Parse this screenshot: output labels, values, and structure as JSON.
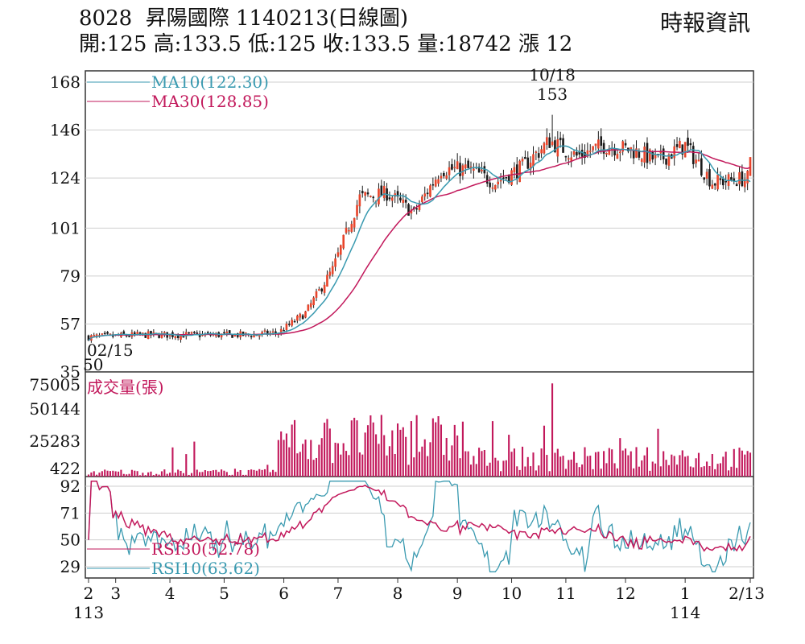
{
  "header": {
    "code": "8028",
    "name": "昇陽國際",
    "date_label": "1140213(日線圖)",
    "source": "時報資訊",
    "ohlc": [
      {
        "label": "開:",
        "value": "125"
      },
      {
        "label": "高:",
        "value": "133.5"
      },
      {
        "label": "低:",
        "value": "125"
      },
      {
        "label": "收:",
        "value": "133.5"
      },
      {
        "label": "量:",
        "value": "18742"
      },
      {
        "label": "漲 ",
        "value": "12"
      }
    ]
  },
  "colors": {
    "up": "#e8442a",
    "down": "#1a1a1a",
    "ma10": "#3a9ab0",
    "ma30": "#c2185b",
    "volume": "#c2185b",
    "rsi30": "#c2185b",
    "rsi10": "#3a9ab0",
    "grid": "#cfcfcf",
    "frame": "#333333"
  },
  "chart_data": [
    {
      "type": "candlestick",
      "panel": "price",
      "y_ticks": [
        "168",
        "146",
        "124",
        "101",
        "79",
        "57",
        "35"
      ],
      "ylim": [
        35,
        168
      ],
      "legend": [
        {
          "name": "MA10(122.30)",
          "series": "ma10"
        },
        {
          "name": "MA30(128.85)",
          "series": "ma30"
        }
      ],
      "annotations": [
        {
          "label": "10/18",
          "value": "153",
          "x": "10/18",
          "y": 153
        },
        {
          "label": "02/15",
          "value": "50",
          "x": "02/15",
          "y": 50
        }
      ],
      "last_bar": {
        "open": 125,
        "high": 133.5,
        "low": 125,
        "close": 133.5
      },
      "ma10_last": 122.3,
      "ma30_last": 128.85,
      "trend_points": [
        {
          "month": 2,
          "price": 51
        },
        {
          "month": 3,
          "price": 52
        },
        {
          "month": 4,
          "price": 52
        },
        {
          "month": 5,
          "price": 52
        },
        {
          "month": 5.5,
          "price": 53
        },
        {
          "month": 6,
          "price": 62
        },
        {
          "month": 6.5,
          "price": 82
        },
        {
          "month": 7,
          "price": 115
        },
        {
          "month": 7.5,
          "price": 117
        },
        {
          "month": 8,
          "price": 108
        },
        {
          "month": 8.5,
          "price": 128
        },
        {
          "month": 9,
          "price": 128
        },
        {
          "month": 9.5,
          "price": 122
        },
        {
          "month": 10,
          "price": 129
        },
        {
          "month": 10.5,
          "price": 141
        },
        {
          "month": 11,
          "price": 134
        },
        {
          "month": 11.5,
          "price": 139
        },
        {
          "month": 12,
          "price": 137
        },
        {
          "month": 12.5,
          "price": 132
        },
        {
          "month": 13,
          "price": 139
        },
        {
          "month": 13.5,
          "price": 122
        },
        {
          "month": 14.2,
          "price": 124
        }
      ]
    },
    {
      "type": "bar",
      "panel": "volume",
      "title": "成交量(張)",
      "y_ticks": [
        "75005",
        "50144",
        "25283",
        "422"
      ],
      "ylim": [
        422,
        75005
      ],
      "last_value": 18742,
      "peak": {
        "month": 10.55,
        "value": 75005
      }
    },
    {
      "type": "line",
      "panel": "rsi",
      "y_ticks": [
        "92",
        "71",
        "50",
        "29"
      ],
      "ylim": [
        29,
        92
      ],
      "legend": [
        {
          "name": "RSI30(52.78)",
          "series": "rsi30"
        },
        {
          "name": "RSI10(63.62)",
          "series": "rsi10"
        }
      ],
      "rsi10_last": 63.62,
      "rsi30_last": 52.78
    }
  ],
  "x_axis": {
    "ticks": [
      {
        "label": "2",
        "month": 2
      },
      {
        "label": "3",
        "month": 2.5
      },
      {
        "label": "4",
        "month": 3.5
      },
      {
        "label": "5",
        "month": 4.5
      },
      {
        "label": "6",
        "month": 5.6
      },
      {
        "label": "7",
        "month": 6.6
      },
      {
        "label": "8",
        "month": 7.7
      },
      {
        "label": "9",
        "month": 8.8
      },
      {
        "label": "10",
        "month": 9.8
      },
      {
        "label": "11",
        "month": 10.8
      },
      {
        "label": "12",
        "month": 11.9
      },
      {
        "label": "1",
        "month": 13.0
      },
      {
        "label": "2/13",
        "month": 14.2
      }
    ],
    "year_labels": [
      {
        "label": "113",
        "month": 2
      },
      {
        "label": "114",
        "month": 13.0
      }
    ]
  }
}
